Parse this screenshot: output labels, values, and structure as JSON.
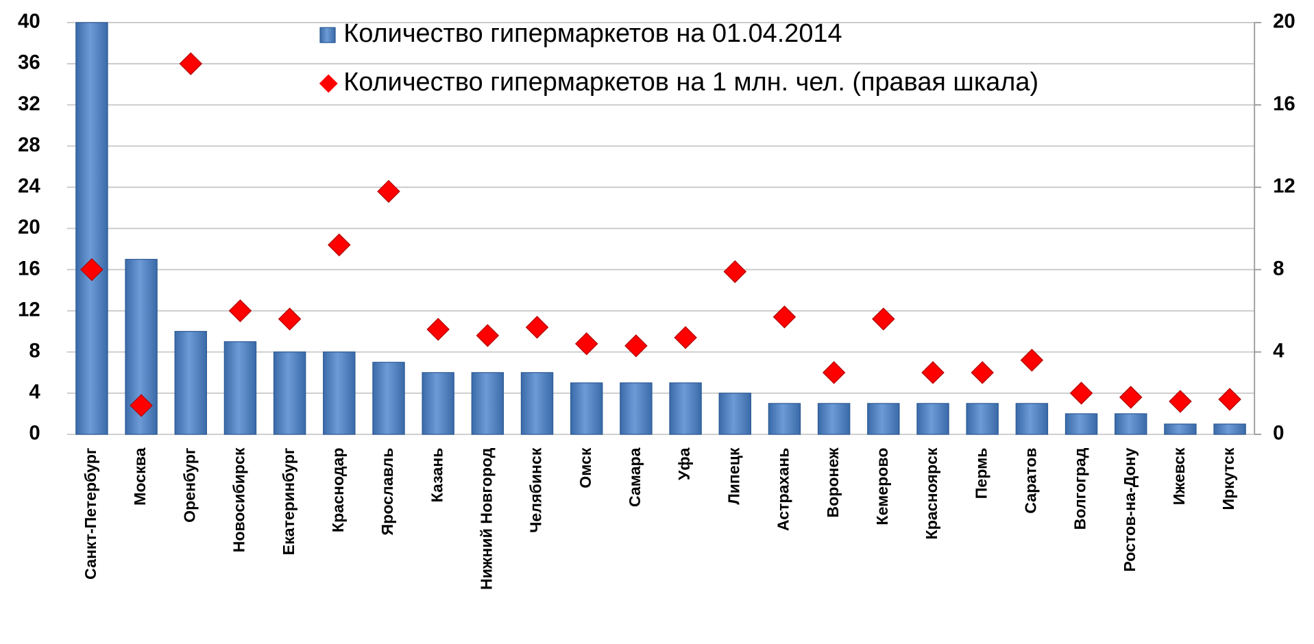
{
  "chart_data": {
    "type": "bar",
    "categories": [
      "Санкт-Петербург",
      "Москва",
      "Оренбург",
      "Новосибирск",
      "Екатеринбург",
      "Краснодар",
      "Ярославль",
      "Казань",
      "Нижний Новгород",
      "Челябинск",
      "Омск",
      "Самара",
      "Уфа",
      "Липецк",
      "Астрахань",
      "Воронеж",
      "Кемерово",
      "Красноярск",
      "Пермь",
      "Саратов",
      "Волгоград",
      "Ростов-на-Дону",
      "Ижевск",
      "Иркутск"
    ],
    "series": [
      {
        "name": "Количество гипермаркетов на 01.04.2014",
        "type": "bar",
        "color": "#4f81bd",
        "values": [
          40,
          17,
          10,
          9,
          8,
          8,
          7,
          6,
          6,
          6,
          5,
          5,
          5,
          4,
          3,
          3,
          3,
          3,
          3,
          3,
          2,
          2,
          1,
          1
        ]
      },
      {
        "name": "Количество гипермаркетов на 1 млн. чел. (правая шкала)",
        "type": "scatter",
        "axis": "y2",
        "color": "#ff0000",
        "values": [
          8.0,
          1.4,
          18.0,
          6.0,
          5.6,
          9.2,
          11.8,
          5.1,
          4.8,
          5.2,
          4.4,
          4.3,
          4.7,
          7.9,
          5.7,
          3.0,
          5.6,
          3.0,
          3.0,
          3.6,
          2.0,
          1.8,
          1.6,
          1.7
        ]
      }
    ],
    "ylim": [
      0,
      40
    ],
    "yticks": [
      0,
      4,
      8,
      12,
      16,
      20,
      24,
      28,
      32,
      36,
      40
    ],
    "y2lim": [
      0,
      20
    ],
    "y2ticks": [
      0,
      4,
      8,
      12,
      16,
      20
    ],
    "grid": true,
    "legend": "top"
  }
}
